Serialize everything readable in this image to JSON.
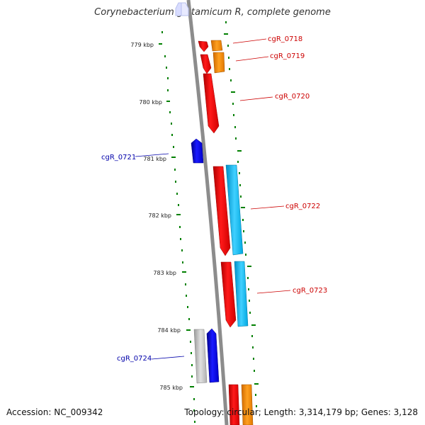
{
  "title": "Corynebacterium glutamicum R, complete genome",
  "accession": "Accession: NC_009342",
  "summary": "Topology: circular; Length: 3,314,179 bp; Genes: 3,128",
  "scale_labels": [
    "779 kbp",
    "780 kbp",
    "781 kbp",
    "782 kbp",
    "783 kbp",
    "784 kbp",
    "785 kbp"
  ],
  "gene_labels": {
    "g0718": "cgR_0718",
    "g0719": "cgR_0719",
    "g0720": "cgR_0720",
    "g0721": "cgR_0721",
    "g0722": "cgR_0722",
    "g0723": "cgR_0723",
    "g0724": "cgR_0724"
  },
  "colors": {
    "forward_gene": "#ff0000",
    "reverse_gene": "#0000ff",
    "forward_label": "#cc0000",
    "reverse_label": "#0000aa",
    "ticks": "#008000",
    "backbone": "#8c8c8c",
    "orange_feature": "#ff8c00",
    "cyan_feature": "#00b7ee",
    "grey_feature": "#c0c0c0"
  }
}
